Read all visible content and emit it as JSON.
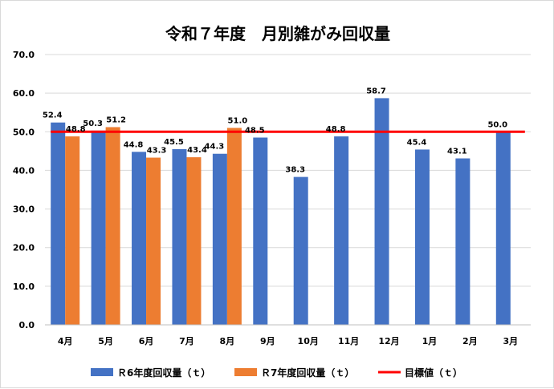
{
  "chart_data": {
    "type": "bar",
    "title": "令和７年度　月別雑がみ回収量",
    "categories": [
      "4月",
      "5月",
      "6月",
      "7月",
      "8月",
      "9月",
      "10月",
      "11月",
      "12月",
      "1月",
      "2月",
      "3月"
    ],
    "series": [
      {
        "name": "Ｒ6年度回収量（ｔ）",
        "color": "#4472C4",
        "values": [
          52.4,
          50.3,
          44.8,
          45.5,
          44.3,
          48.5,
          38.3,
          48.8,
          58.7,
          45.4,
          43.1,
          50.0
        ],
        "labels": [
          "52.4",
          "50.3",
          "44.8",
          "45.5",
          "44.3",
          "48.5",
          "38.3",
          "48.8",
          "58.7",
          "45.4",
          "43.1",
          "50.0"
        ]
      },
      {
        "name": "Ｒ7年度回収量（ｔ）",
        "color": "#ED7D31",
        "values": [
          48.8,
          51.2,
          43.3,
          43.4,
          51.0,
          null,
          null,
          null,
          null,
          null,
          null,
          null
        ],
        "labels": [
          "48.8",
          "51.2",
          "43.3",
          "43.4",
          "51.0",
          null,
          null,
          null,
          null,
          null,
          null,
          null
        ]
      }
    ],
    "target": {
      "name": "目標値（ｔ）",
      "value": 50.0,
      "color": "#FF0000"
    },
    "ylim": [
      0,
      70
    ],
    "yticks": [
      "0.0",
      "10.0",
      "20.0",
      "30.0",
      "40.0",
      "50.0",
      "60.0",
      "70.0"
    ],
    "xlabel": "",
    "ylabel": "",
    "grid": true,
    "legend": "bottom"
  }
}
